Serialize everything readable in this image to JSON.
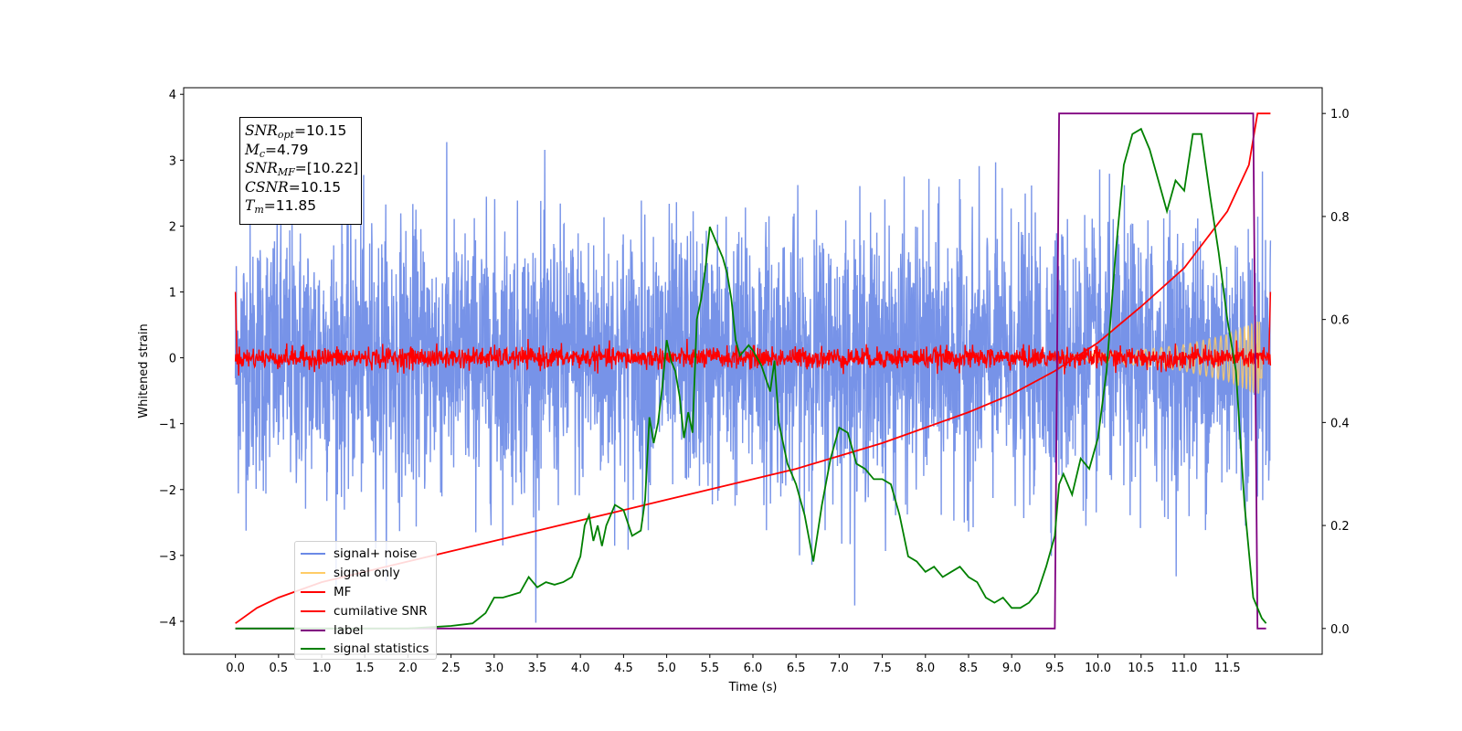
{
  "chart_data": {
    "type": "line",
    "xlabel": "Time (s)",
    "ylabel": "Whitened strain",
    "xlim": [
      -0.6,
      12.6
    ],
    "ylim_left": [
      -4.5,
      4.1
    ],
    "ylim_right": [
      -0.05,
      1.05
    ],
    "x_ticks": [
      "0.0",
      "0.5",
      "1.0",
      "1.5",
      "2.0",
      "2.5",
      "3.0",
      "3.5",
      "4.0",
      "4.5",
      "5.0",
      "5.5",
      "6.0",
      "6.5",
      "7.0",
      "7.5",
      "8.0",
      "8.5",
      "9.0",
      "9.5",
      "10.0",
      "10.5",
      "11.0",
      "11.5"
    ],
    "y_ticks_left": [
      "4",
      "3",
      "2",
      "1",
      "0",
      "−1",
      "−2",
      "−3",
      "−4"
    ],
    "y_ticks_right": [
      "1.0",
      "0.8",
      "0.6",
      "0.4",
      "0.2",
      "0.0"
    ],
    "annotations": {
      "snr_opt": "=10.15",
      "mc": "=4.79",
      "snr_mf": "=[10.22]",
      "csnr": "=10.15",
      "tm": "=11.85"
    },
    "legend_position": "lower-left",
    "series": [
      {
        "name": "signal+ noise",
        "color": "#6b8ae6",
        "axis": "left",
        "kind": "noise",
        "range": [
          0,
          12.0
        ],
        "amplitude_std": 1.0,
        "max_abs": 4.1
      },
      {
        "name": "signal only",
        "color": "#ffcc66",
        "axis": "left",
        "kind": "chirp",
        "range": [
          9.5,
          12.0
        ],
        "envelope": [
          [
            9.5,
            0.03
          ],
          [
            10.0,
            0.07
          ],
          [
            10.5,
            0.12
          ],
          [
            11.0,
            0.2
          ],
          [
            11.5,
            0.35
          ],
          [
            11.85,
            0.55
          ]
        ]
      },
      {
        "name": "MF",
        "color": "#ff0000",
        "axis": "left",
        "kind": "noise",
        "range": [
          0,
          12.0
        ],
        "amplitude_std": 0.08,
        "max_abs": 0.3
      },
      {
        "name": "cumilative SNR",
        "color": "#ff0000",
        "axis": "right",
        "x": [
          0,
          0.25,
          0.5,
          1.0,
          1.5,
          2.0,
          2.5,
          3.0,
          3.5,
          4.0,
          4.5,
          5.0,
          5.5,
          6.0,
          6.5,
          7.0,
          7.5,
          8.0,
          8.5,
          9.0,
          9.5,
          10.0,
          10.5,
          11.0,
          11.5,
          11.75,
          11.85,
          12.0
        ],
        "y": [
          0.01,
          0.04,
          0.06,
          0.09,
          0.11,
          0.13,
          0.15,
          0.17,
          0.19,
          0.21,
          0.23,
          0.25,
          0.27,
          0.29,
          0.31,
          0.335,
          0.36,
          0.39,
          0.42,
          0.455,
          0.5,
          0.555,
          0.625,
          0.7,
          0.81,
          0.9,
          1.0,
          1.0
        ]
      },
      {
        "name": "label",
        "color": "#800080",
        "axis": "right",
        "x": [
          0,
          9.5,
          9.55,
          11.8,
          11.85,
          11.95
        ],
        "y": [
          0,
          0,
          1,
          1,
          0,
          0
        ]
      },
      {
        "name": "signal statistics",
        "color": "#008000",
        "axis": "right",
        "x": [
          0,
          0.5,
          1.0,
          1.5,
          2.0,
          2.5,
          2.75,
          2.9,
          3.0,
          3.1,
          3.2,
          3.3,
          3.4,
          3.5,
          3.6,
          3.7,
          3.8,
          3.9,
          4.0,
          4.05,
          4.1,
          4.15,
          4.2,
          4.25,
          4.3,
          4.4,
          4.5,
          4.6,
          4.7,
          4.75,
          4.8,
          4.85,
          4.9,
          4.95,
          5.0,
          5.05,
          5.1,
          5.15,
          5.2,
          5.25,
          5.3,
          5.35,
          5.4,
          5.45,
          5.5,
          5.55,
          5.6,
          5.65,
          5.7,
          5.75,
          5.8,
          5.85,
          5.9,
          5.95,
          6.0,
          6.1,
          6.2,
          6.25,
          6.3,
          6.4,
          6.5,
          6.6,
          6.7,
          6.8,
          6.9,
          7.0,
          7.1,
          7.2,
          7.3,
          7.4,
          7.5,
          7.6,
          7.7,
          7.8,
          7.9,
          8.0,
          8.1,
          8.2,
          8.3,
          8.4,
          8.5,
          8.6,
          8.7,
          8.8,
          8.9,
          9.0,
          9.1,
          9.2,
          9.3,
          9.4,
          9.5,
          9.55,
          9.6,
          9.7,
          9.8,
          9.9,
          10.0,
          10.1,
          10.2,
          10.3,
          10.4,
          10.5,
          10.6,
          10.7,
          10.8,
          10.9,
          11.0,
          11.1,
          11.2,
          11.3,
          11.4,
          11.5,
          11.6,
          11.7,
          11.8,
          11.9,
          11.95
        ],
        "y": [
          0.0,
          0.0,
          0.0,
          0.0,
          0.0,
          0.005,
          0.01,
          0.03,
          0.06,
          0.06,
          0.065,
          0.07,
          0.1,
          0.08,
          0.09,
          0.085,
          0.09,
          0.1,
          0.14,
          0.2,
          0.22,
          0.17,
          0.2,
          0.16,
          0.2,
          0.24,
          0.23,
          0.18,
          0.19,
          0.25,
          0.41,
          0.36,
          0.4,
          0.47,
          0.56,
          0.52,
          0.5,
          0.45,
          0.37,
          0.42,
          0.38,
          0.6,
          0.64,
          0.7,
          0.78,
          0.76,
          0.74,
          0.72,
          0.69,
          0.64,
          0.56,
          0.53,
          0.54,
          0.55,
          0.54,
          0.51,
          0.46,
          0.52,
          0.4,
          0.32,
          0.28,
          0.22,
          0.13,
          0.24,
          0.33,
          0.39,
          0.38,
          0.32,
          0.31,
          0.29,
          0.29,
          0.28,
          0.22,
          0.14,
          0.13,
          0.11,
          0.12,
          0.1,
          0.11,
          0.12,
          0.1,
          0.09,
          0.06,
          0.05,
          0.06,
          0.04,
          0.04,
          0.05,
          0.07,
          0.12,
          0.18,
          0.28,
          0.3,
          0.26,
          0.33,
          0.31,
          0.37,
          0.5,
          0.72,
          0.9,
          0.96,
          0.97,
          0.93,
          0.87,
          0.81,
          0.87,
          0.85,
          0.96,
          0.96,
          0.84,
          0.73,
          0.6,
          0.5,
          0.24,
          0.06,
          0.02,
          0.01
        ]
      }
    ]
  }
}
